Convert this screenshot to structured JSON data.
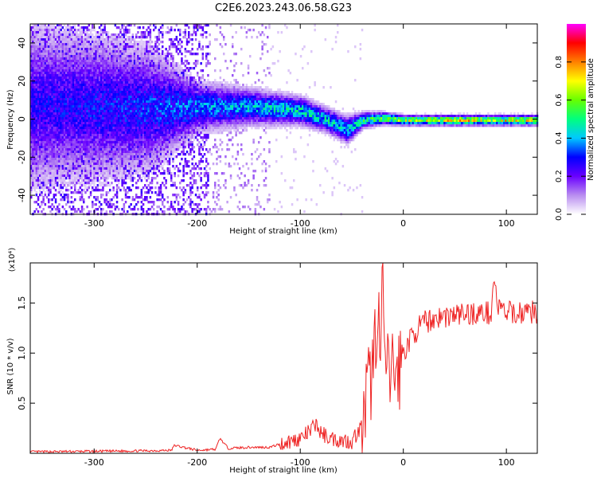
{
  "title": "C2E6.2023.243.06.58.G23",
  "colors": {
    "snr_line": "#ee2222"
  },
  "chart_data": [
    {
      "type": "heatmap",
      "name": "spectrogram",
      "xlabel": "Height of straight line (km)",
      "ylabel": "Frequency (Hz)",
      "xlim": [
        -362,
        130
      ],
      "ylim": [
        -50,
        50
      ],
      "xticks": [
        -300,
        -200,
        -100,
        0,
        100
      ],
      "yticks": [
        -40,
        -20,
        0,
        20,
        40
      ],
      "colorbar": {
        "label": "Normalized spectral amplitude",
        "range": [
          0.0,
          1.0
        ],
        "ticks": [
          0.0,
          0.2,
          0.4,
          0.6,
          0.8
        ],
        "tick_labels": [
          "0.0",
          "0.2",
          "0.4",
          "0.6",
          "0.8"
        ],
        "colormap": [
          "#ffffff",
          "#b98df0",
          "#6a00ff",
          "#0000ff",
          "#00c8ff",
          "#00ff7f",
          "#66ff00",
          "#ffff00",
          "#ff8000",
          "#ff0000",
          "#ff00ff"
        ]
      },
      "center_line": [
        {
          "x": -362,
          "y": 8,
          "spread": 40,
          "amp": 0.32
        },
        {
          "x": -250,
          "y": 6,
          "spread": 30,
          "amp": 0.38
        },
        {
          "x": -200,
          "y": 7,
          "spread": 12,
          "amp": 0.45
        },
        {
          "x": -150,
          "y": 7,
          "spread": 9,
          "amp": 0.5
        },
        {
          "x": -100,
          "y": 5,
          "spread": 7,
          "amp": 0.55
        },
        {
          "x": -75,
          "y": 0,
          "spread": 6,
          "amp": 0.55
        },
        {
          "x": -55,
          "y": -5,
          "spread": 7,
          "amp": 0.5
        },
        {
          "x": -40,
          "y": 0,
          "spread": 4,
          "amp": 0.6
        },
        {
          "x": -20,
          "y": 1,
          "spread": 3,
          "amp": 0.7
        },
        {
          "x": 0,
          "y": 0,
          "spread": 2.5,
          "amp": 0.8
        },
        {
          "x": 60,
          "y": 0,
          "spread": 2.5,
          "amp": 0.85
        },
        {
          "x": 130,
          "y": 0,
          "spread": 2.5,
          "amp": 0.85
        }
      ]
    },
    {
      "type": "line",
      "name": "snr",
      "xlabel": "Height of straight line (km)",
      "ylabel": "SNR (10 * v/v)",
      "yscale_label": "(x10⁴)",
      "xlim": [
        -362,
        130
      ],
      "ylim": [
        0,
        1.9
      ],
      "xticks": [
        -300,
        -200,
        -100,
        0,
        100
      ],
      "yticks": [
        0.5,
        1.0,
        1.5
      ],
      "ytick_labels": [
        "0.5",
        "1.0",
        "1.5"
      ],
      "x": [
        -362,
        -300,
        -250,
        -225,
        -222,
        -200,
        -182,
        -178,
        -170,
        -150,
        -130,
        -110,
        -100,
        -90,
        -85,
        -80,
        -70,
        -60,
        -50,
        -45,
        -38,
        -35,
        -30,
        -25,
        -22,
        -20,
        -18,
        -15,
        -10,
        -5,
        0,
        10,
        20,
        30,
        50,
        70,
        85,
        88,
        92,
        100,
        110,
        120,
        130
      ],
      "y": [
        0.015,
        0.02,
        0.025,
        0.03,
        0.08,
        0.03,
        0.04,
        0.15,
        0.05,
        0.06,
        0.06,
        0.12,
        0.15,
        0.22,
        0.3,
        0.2,
        0.15,
        0.13,
        0.12,
        0.2,
        0.3,
        0.6,
        0.8,
        1.5,
        0.9,
        1.85,
        0.9,
        0.75,
        0.85,
        0.8,
        1.0,
        1.2,
        1.3,
        1.35,
        1.38,
        1.4,
        1.4,
        1.75,
        1.45,
        1.4,
        1.4,
        1.42,
        1.4
      ]
    }
  ]
}
